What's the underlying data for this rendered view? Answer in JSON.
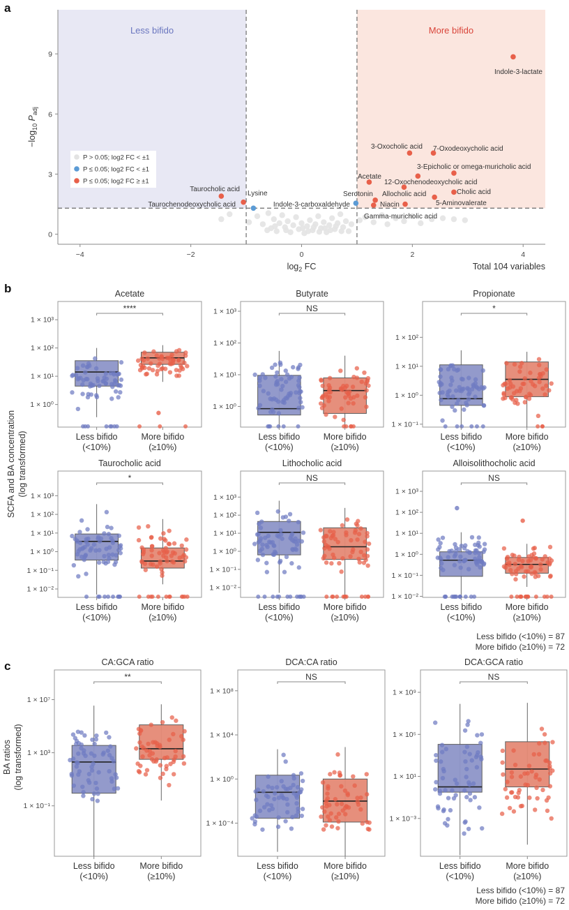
{
  "panel_labels": {
    "a": "a",
    "b": "b",
    "c": "c"
  },
  "group_sizes": {
    "less": "Less bifido (<10%) = 87",
    "more": "More bifido (≥10%) = 72"
  },
  "colors": {
    "less": "#6f7bc2",
    "more": "#e8604a",
    "less_box": "#8e95c9",
    "more_box": "#e58a76",
    "ns_point": "#e3e3e3",
    "sig_blue": "#5b9bd5",
    "sig_red": "#e8604a",
    "less_region": "#e8e8f4",
    "more_region": "#fbe6df",
    "less_text": "#6a76bf",
    "more_text": "#d9453a"
  },
  "chart_data": [
    {
      "id": "volcano",
      "type": "scatter",
      "title": "",
      "xlabel": "log2 FC",
      "ylabel": "-log10 P_adj",
      "xlim": [
        -4.4,
        4.4
      ],
      "ylim": [
        -0.5,
        11.2
      ],
      "xticks": [
        -4,
        -2,
        0,
        2,
        4
      ],
      "yticks": [
        0,
        3,
        6,
        9
      ],
      "fc_threshold": 1,
      "p_threshold": 1.3,
      "region_labels": {
        "left": "Less bifido",
        "right": "More bifido"
      },
      "footer": "Total 104 variables",
      "legend": [
        {
          "key": "ns",
          "label": "P > 0.05; log2 FC < ±1"
        },
        {
          "key": "blue",
          "label": "P ≤ 0.05; log2 FC < ±1"
        },
        {
          "key": "red",
          "label": "P ≤ 0.05; log2 FC ≥ ±1"
        }
      ],
      "labeled_points": [
        {
          "label": "Indole-3-lactate",
          "x": 3.82,
          "y": 8.85,
          "cls": "red"
        },
        {
          "label": "3-Oxocholic acid",
          "x": 1.95,
          "y": 4.05,
          "cls": "red"
        },
        {
          "label": "7-Oxodeoxycholic acid",
          "x": 2.38,
          "y": 4.05,
          "cls": "red"
        },
        {
          "label": "3-Epicholic or omega-muricholic acid",
          "x": 2.75,
          "y": 3.05,
          "cls": "red"
        },
        {
          "label": "12-Oxochenodeoxycholic acid",
          "x": 2.1,
          "y": 2.9,
          "cls": "red"
        },
        {
          "label": "Acetate",
          "x": 1.22,
          "y": 2.6,
          "cls": "red"
        },
        {
          "label": "Allocholic acid",
          "x": 1.85,
          "y": 2.35,
          "cls": "red"
        },
        {
          "label": "Cholic acid",
          "x": 2.75,
          "y": 2.1,
          "cls": "red"
        },
        {
          "label": "5-Aminovalerate",
          "x": 2.4,
          "y": 1.85,
          "cls": "red"
        },
        {
          "label": "Serotonin",
          "x": 1.33,
          "y": 1.7,
          "cls": "red"
        },
        {
          "label": "Niacin",
          "x": 1.87,
          "y": 1.5,
          "cls": "red"
        },
        {
          "label": "Gamma-muricholic acid",
          "x": 1.3,
          "y": 1.45,
          "cls": "red"
        },
        {
          "label": "Indole-3-carboxaldehyde",
          "x": 0.98,
          "y": 1.55,
          "cls": "blue"
        },
        {
          "label": "Lysine",
          "x": -0.87,
          "y": 1.3,
          "cls": "blue"
        },
        {
          "label": "Taurocholic acid",
          "x": -1.45,
          "y": 1.9,
          "cls": "red"
        },
        {
          "label": "Taurochenodeoxycholic acid",
          "x": -1.05,
          "y": 1.6,
          "cls": "red"
        }
      ],
      "ns_points": [
        [
          -1.45,
          0.75
        ],
        [
          -1.3,
          1.0
        ],
        [
          -0.95,
          0.6
        ],
        [
          -0.8,
          0.9
        ],
        [
          -0.7,
          0.5
        ],
        [
          -0.6,
          1.05
        ],
        [
          -0.55,
          0.3
        ],
        [
          -0.5,
          0.75
        ],
        [
          -0.45,
          0.15
        ],
        [
          -0.4,
          0.55
        ],
        [
          -0.35,
          0.95
        ],
        [
          -0.3,
          0.35
        ],
        [
          -0.25,
          0.65
        ],
        [
          -0.2,
          0.1
        ],
        [
          -0.15,
          0.45
        ],
        [
          -0.1,
          0.85
        ],
        [
          -0.05,
          0.25
        ],
        [
          0.0,
          0.55
        ],
        [
          0.05,
          0.05
        ],
        [
          0.1,
          0.4
        ],
        [
          0.15,
          0.7
        ],
        [
          0.2,
          0.2
        ],
        [
          0.25,
          0.5
        ],
        [
          0.3,
          0.9
        ],
        [
          0.35,
          0.3
        ],
        [
          0.4,
          0.6
        ],
        [
          0.45,
          0.1
        ],
        [
          0.5,
          0.45
        ],
        [
          0.55,
          0.8
        ],
        [
          0.6,
          0.25
        ],
        [
          0.65,
          0.55
        ],
        [
          0.7,
          1.0
        ],
        [
          0.75,
          0.35
        ],
        [
          0.8,
          0.65
        ],
        [
          0.85,
          0.15
        ],
        [
          0.9,
          0.5
        ],
        [
          -0.62,
          0.2
        ],
        [
          -0.48,
          0.4
        ],
        [
          -0.28,
          0.2
        ],
        [
          0.02,
          0.3
        ],
        [
          0.12,
          0.15
        ],
        [
          0.22,
          0.35
        ],
        [
          0.32,
          0.12
        ],
        [
          0.42,
          0.3
        ],
        [
          0.52,
          0.2
        ],
        [
          0.62,
          0.4
        ],
        [
          0.72,
          0.15
        ],
        [
          1.05,
          0.7
        ],
        [
          1.15,
          0.85
        ],
        [
          1.3,
          0.6
        ],
        [
          1.45,
          0.95
        ],
        [
          1.55,
          0.5
        ],
        [
          1.7,
          0.8
        ],
        [
          1.85,
          0.65
        ],
        [
          2.0,
          0.9
        ],
        [
          2.15,
          0.55
        ],
        [
          2.35,
          0.75
        ],
        [
          2.55,
          0.8
        ],
        [
          2.75,
          0.75
        ],
        [
          2.95,
          0.7
        ]
      ]
    },
    {
      "id": "acetate",
      "type": "box",
      "title": "Acetate",
      "sig": "****",
      "categories": [
        "Less bifido\n(<10%)",
        "More bifido\n(≥10%)"
      ],
      "log_ylim": [
        -0.8,
        3.3
      ],
      "yticks": [
        0,
        1,
        2,
        3
      ],
      "groups": [
        {
          "q1": 0.65,
          "median": 1.15,
          "q3": 1.55,
          "lo": -0.45,
          "hi": 2.0,
          "floor": -0.8,
          "spread": [
            -0.45,
            2.05
          ],
          "n_floor": 8
        },
        {
          "q1": 1.42,
          "median": 1.65,
          "q3": 1.85,
          "lo": 0.8,
          "hi": 2.1,
          "floor": -0.8,
          "spread": [
            0.8,
            2.15
          ],
          "n_floor": 3,
          "outliers": [
            -0.3
          ]
        }
      ]
    },
    {
      "id": "butyrate",
      "type": "box",
      "title": "Butyrate",
      "sig": "NS",
      "categories": [
        "Less bifido\n(<10%)",
        "More bifido\n(≥10%)"
      ],
      "log_ylim": [
        -0.65,
        3.0
      ],
      "yticks": [
        0,
        1,
        2,
        3
      ],
      "groups": [
        {
          "q1": -0.27,
          "median": -0.07,
          "q3": 0.98,
          "lo": -0.65,
          "hi": 1.75,
          "floor": -0.65,
          "spread": [
            -0.6,
            1.75
          ],
          "n_floor": 6
        },
        {
          "q1": -0.22,
          "median": 0.5,
          "q3": 0.9,
          "lo": -0.65,
          "hi": 1.6,
          "floor": -0.65,
          "spread": [
            -0.6,
            1.6
          ],
          "n_floor": 5
        }
      ]
    },
    {
      "id": "propionate",
      "type": "box",
      "title": "Propionate",
      "sig": "*",
      "categories": [
        "Less bifido\n(<10%)",
        "More bifido\n(≥10%)"
      ],
      "log_ylim": [
        -1.1,
        2.9
      ],
      "yticks": [
        -1,
        0,
        1,
        2
      ],
      "groups": [
        {
          "q1": -0.35,
          "median": -0.12,
          "q3": 1.05,
          "lo": -1.1,
          "hi": 1.55,
          "floor": -1.1,
          "spread": [
            -1.05,
            1.55
          ],
          "n_floor": 6
        },
        {
          "q1": -0.05,
          "median": 0.55,
          "q3": 1.15,
          "lo": -1.1,
          "hi": 1.5,
          "floor": -1.1,
          "spread": [
            -0.9,
            1.5
          ],
          "n_floor": 3
        }
      ]
    },
    {
      "id": "taurocholic",
      "type": "box",
      "title": "Taurocholic acid",
      "sig": "*",
      "categories": [
        "Less bifido\n(<10%)",
        "More bifido\n(≥10%)"
      ],
      "log_ylim": [
        -2.45,
        3.8
      ],
      "yticks": [
        -2,
        -1,
        0,
        1,
        2,
        3
      ],
      "groups": [
        {
          "q1": -0.45,
          "median": 0.55,
          "q3": 0.95,
          "lo": -2.3,
          "hi": 2.55,
          "floor": -2.45,
          "spread": [
            -1.9,
            2.55
          ],
          "n_floor": 10
        },
        {
          "q1": -0.88,
          "median": -0.5,
          "q3": 0.2,
          "lo": -1.75,
          "hi": 1.75,
          "floor": -2.45,
          "spread": [
            -1.8,
            1.75
          ],
          "n_floor": 12
        }
      ]
    },
    {
      "id": "lithocholic",
      "type": "box",
      "title": "Lithocholic acid",
      "sig": "NS",
      "categories": [
        "Less bifido\n(<10%)",
        "More bifido\n(≥10%)"
      ],
      "log_ylim": [
        -2.55,
        3.9
      ],
      "yticks": [
        -2,
        -1,
        0,
        1,
        2,
        3
      ],
      "groups": [
        {
          "q1": -0.2,
          "median": 1.05,
          "q3": 1.65,
          "lo": -2.3,
          "hi": 2.8,
          "floor": -2.55,
          "spread": [
            -1.8,
            2.85
          ],
          "n_floor": 12
        },
        {
          "q1": -0.45,
          "median": 0.25,
          "q3": 1.3,
          "lo": -2.5,
          "hi": 2.4,
          "floor": -2.55,
          "spread": [
            -2.0,
            2.55
          ],
          "n_floor": 12
        }
      ]
    },
    {
      "id": "alloisolithocholic",
      "type": "box",
      "title": "Alloisolithocholic acid",
      "sig": "NS",
      "categories": [
        "Less bifido\n(<10%)",
        "More bifido\n(≥10%)"
      ],
      "log_ylim": [
        -2.05,
        3.5
      ],
      "yticks": [
        -2,
        -1,
        0,
        1,
        2,
        3
      ],
      "groups": [
        {
          "q1": -1.05,
          "median": -0.28,
          "q3": 0.12,
          "lo": -2.05,
          "hi": 1.05,
          "floor": -2.05,
          "spread": [
            -1.3,
            1.1
          ],
          "n_floor": 14,
          "outliers": [
            2.2
          ]
        },
        {
          "q1": -0.9,
          "median": -0.48,
          "q3": -0.15,
          "lo": -1.55,
          "hi": 0.5,
          "floor": -2.05,
          "spread": [
            -1.55,
            0.55
          ],
          "n_floor": 14,
          "outliers": [
            1.6
          ]
        }
      ]
    },
    {
      "id": "ca_gca",
      "type": "box",
      "title": "CA:GCA ratio",
      "sig": "**",
      "categories": [
        "Less bifido\n(<10%)",
        "More bifido\n(≥10%)"
      ],
      "log_ylim": [
        -4.8,
        8.5
      ],
      "yticks": [
        -1,
        3,
        7
      ],
      "ytick_step": 4,
      "groups": [
        {
          "q1": -0.05,
          "median": 2.3,
          "q3": 3.55,
          "lo": -4.8,
          "hi": 6.55,
          "floor": -4.8,
          "spread": [
            -2.3,
            6.6
          ],
          "n_floor": 0
        },
        {
          "q1": 2.5,
          "median": 3.3,
          "q3": 5.1,
          "lo": -0.6,
          "hi": 6.65,
          "floor": -4.8,
          "spread": [
            -0.6,
            6.7
          ],
          "n_floor": 0
        }
      ]
    },
    {
      "id": "dca_ca",
      "type": "box",
      "title": "DCA:CA ratio",
      "sig": "NS",
      "categories": [
        "Less bifido\n(<10%)",
        "More bifido\n(≥10%)"
      ],
      "log_ylim": [
        -7.0,
        9.0
      ],
      "yticks": [
        -4,
        0,
        4,
        8
      ],
      "ytick_step": 4,
      "groups": [
        {
          "q1": -3.55,
          "median": -1.2,
          "q3": 0.35,
          "lo": -6.6,
          "hi": 2.7,
          "floor": -7.0,
          "spread": [
            -6.6,
            2.8
          ],
          "n_floor": 0
        },
        {
          "q1": -3.9,
          "median": -2.0,
          "q3": 0.0,
          "lo": -7.0,
          "hi": 2.9,
          "floor": -7.0,
          "spread": [
            -7.0,
            3.0
          ],
          "n_floor": 0
        }
      ]
    },
    {
      "id": "dca_gca",
      "type": "box",
      "title": "DCA:GCA ratio",
      "sig": "NS",
      "categories": [
        "Less bifido\n(<10%)",
        "More bifido\n(≥10%)"
      ],
      "log_ylim": [
        -6.6,
        10.2
      ],
      "yticks": [
        -3,
        1,
        5,
        9
      ],
      "ytick_step": 4,
      "groups": [
        {
          "q1": -0.5,
          "median": 0.0,
          "q3": 4.05,
          "lo": -6.5,
          "hi": 7.9,
          "floor": -6.6,
          "spread": [
            -6.5,
            8.0
          ],
          "n_floor": 0
        },
        {
          "q1": 0.0,
          "median": 1.7,
          "q3": 4.3,
          "lo": -5.5,
          "hi": 8.0,
          "floor": -6.6,
          "spread": [
            -5.5,
            8.2
          ],
          "n_floor": 0
        }
      ]
    }
  ],
  "axis_titles": {
    "b_ylabel_line1": "SCFA and BA concentration",
    "b_ylabel_line2": "(log transformed)",
    "c_ylabel_line1": "BA ratios",
    "c_ylabel_line2": "(log transformed)"
  }
}
